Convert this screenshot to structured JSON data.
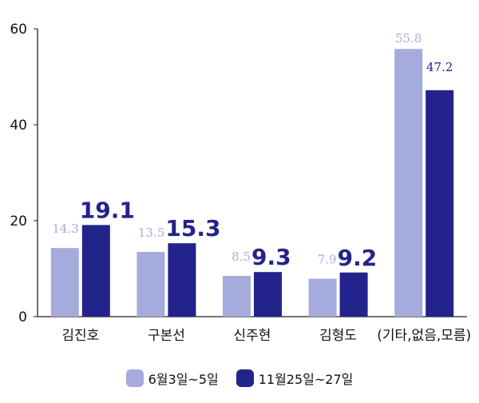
{
  "chart_data": {
    "type": "bar",
    "categories": [
      "김진호",
      "구본선",
      "신주현",
      "김형도",
      "(기타,없음,모름)"
    ],
    "series": [
      {
        "name": "6월3일~5일",
        "values": [
          14.3,
          13.5,
          8.5,
          7.9,
          55.8
        ],
        "color": "#a5abdc"
      },
      {
        "name": "11월25일~27일",
        "values": [
          19.1,
          15.3,
          9.3,
          9.2,
          47.2
        ],
        "color": "#23238c"
      }
    ],
    "ylim": [
      0,
      60
    ],
    "yticks": [
      0,
      20,
      40,
      60
    ],
    "grid": false,
    "legend": "bottom"
  }
}
